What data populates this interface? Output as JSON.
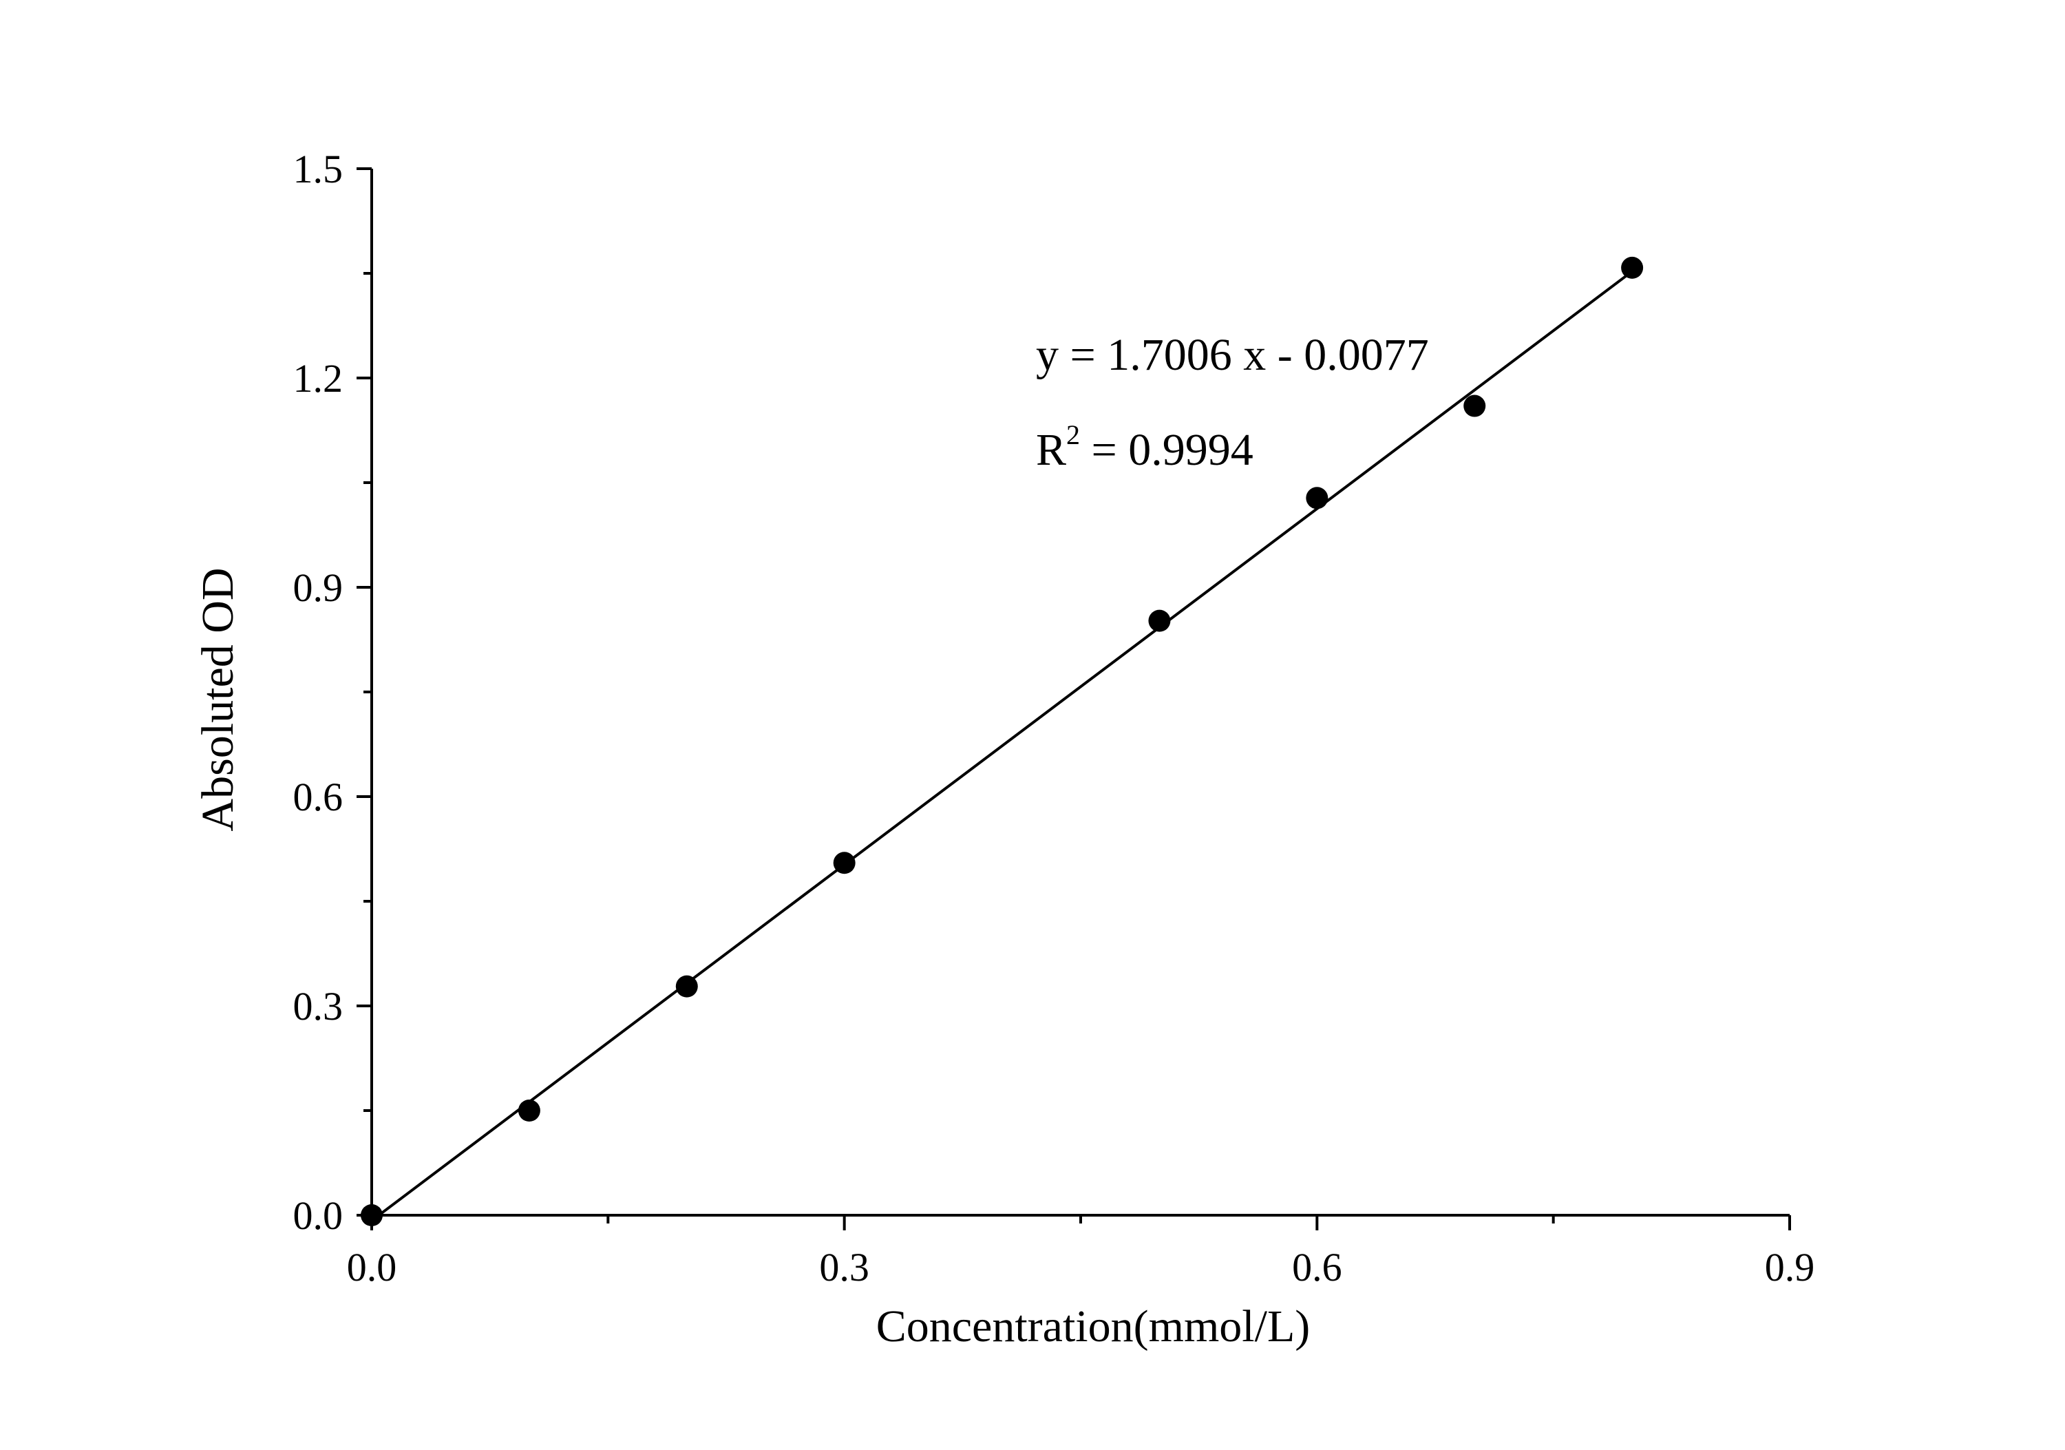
{
  "chart_data": {
    "type": "scatter",
    "title": "",
    "xlabel": "Concentration(mmol/L)",
    "ylabel": "Absoluted OD",
    "xlim": [
      0,
      0.9
    ],
    "ylim": [
      0,
      1.5
    ],
    "xticks": [
      "0.0",
      "0.3",
      "0.6",
      "0.9"
    ],
    "yticks": [
      "0.0",
      "0.3",
      "0.6",
      "0.9",
      "1.2",
      "1.5"
    ],
    "grid": false,
    "points": [
      {
        "x": 0.0,
        "y": 0.0
      },
      {
        "x": 0.1,
        "y": 0.15
      },
      {
        "x": 0.2,
        "y": 0.328
      },
      {
        "x": 0.3,
        "y": 0.505
      },
      {
        "x": 0.5,
        "y": 0.852
      },
      {
        "x": 0.6,
        "y": 1.028
      },
      {
        "x": 0.7,
        "y": 1.16
      },
      {
        "x": 0.8,
        "y": 1.358
      }
    ],
    "fit": {
      "slope": 1.7006,
      "intercept": -0.0077,
      "x_range": [
        0.0,
        0.8
      ],
      "equation_text": "y = 1.7006 x - 0.0077",
      "r2_prefix": "R",
      "r2_sup": "2",
      "r2_value_text": " = 0.9994"
    },
    "colors": {
      "marks": "#000000"
    }
  }
}
